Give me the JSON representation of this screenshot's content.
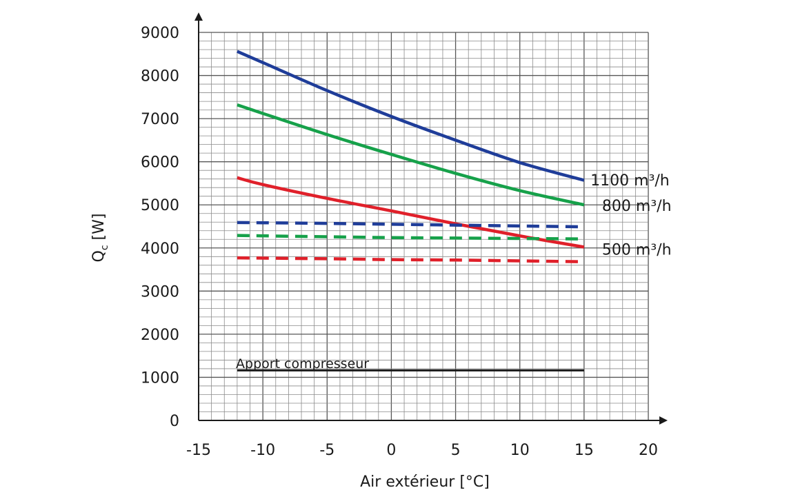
{
  "chart_data": {
    "type": "line",
    "xlabel": "Air extérieur  [°C]",
    "ylabel_main": "Q",
    "ylabel_sub": "c",
    "ylabel_unit": " [W]",
    "xlim": [
      -15,
      20
    ],
    "ylim": [
      0,
      9000
    ],
    "x_ticks": [
      -15,
      -10,
      -5,
      0,
      5,
      10,
      15,
      20
    ],
    "x_tick_labels": [
      "-15",
      "-10",
      "-5",
      "0",
      "5",
      "10",
      "15",
      "20"
    ],
    "y_ticks": [
      0,
      1000,
      2000,
      3000,
      4000,
      5000,
      6000,
      7000,
      8000,
      9000
    ],
    "y_tick_labels": [
      "0",
      "1000",
      "2000",
      "3000",
      "4000",
      "5000",
      "6000",
      "7000",
      "8000",
      "9000"
    ],
    "grid": true,
    "series": [
      {
        "name": "1100 m³/h",
        "color": "#1f3d99",
        "style": "solid",
        "x": [
          -12,
          -10,
          -5,
          0,
          5,
          10,
          15
        ],
        "y": [
          8560,
          8300,
          7650,
          7050,
          6500,
          5980,
          5570
        ]
      },
      {
        "name": "800 m³/h",
        "color": "#16a14a",
        "style": "solid",
        "x": [
          -12,
          -10,
          -5,
          0,
          5,
          10,
          15
        ],
        "y": [
          7320,
          7120,
          6630,
          6170,
          5730,
          5330,
          5000
        ]
      },
      {
        "name": "500 m³/h",
        "color": "#e0202a",
        "style": "solid",
        "x": [
          -12,
          -10,
          -5,
          0,
          5,
          10,
          15
        ],
        "y": [
          5630,
          5470,
          5150,
          4860,
          4560,
          4280,
          4020
        ]
      },
      {
        "name": "",
        "color": "#1f3d99",
        "style": "dashed",
        "x": [
          -12,
          -5,
          0,
          5,
          10,
          15
        ],
        "y": [
          4590,
          4570,
          4550,
          4530,
          4510,
          4490
        ]
      },
      {
        "name": "",
        "color": "#16a14a",
        "style": "dashed",
        "x": [
          -12,
          -5,
          0,
          5,
          10,
          15
        ],
        "y": [
          4290,
          4260,
          4240,
          4230,
          4220,
          4210
        ]
      },
      {
        "name": "",
        "color": "#e0202a",
        "style": "dashed",
        "x": [
          -12,
          -5,
          0,
          5,
          10,
          15
        ],
        "y": [
          3770,
          3750,
          3730,
          3720,
          3700,
          3680
        ]
      },
      {
        "name": "Apport compresseur",
        "color": "#1a1a1a",
        "style": "solid",
        "x": [
          -12,
          15
        ],
        "y": [
          1160,
          1160
        ]
      }
    ],
    "series_labels": [
      {
        "text": "1100 m³/h",
        "x": 15.5,
        "y": 5580
      },
      {
        "text": "800 m³/h",
        "x": 16.4,
        "y": 4990
      },
      {
        "text": "500 m³/h",
        "x": 16.4,
        "y": 3970
      }
    ],
    "annotations": [
      {
        "text": "Apport compresseur",
        "x": -12.1,
        "y": 1310
      }
    ]
  }
}
